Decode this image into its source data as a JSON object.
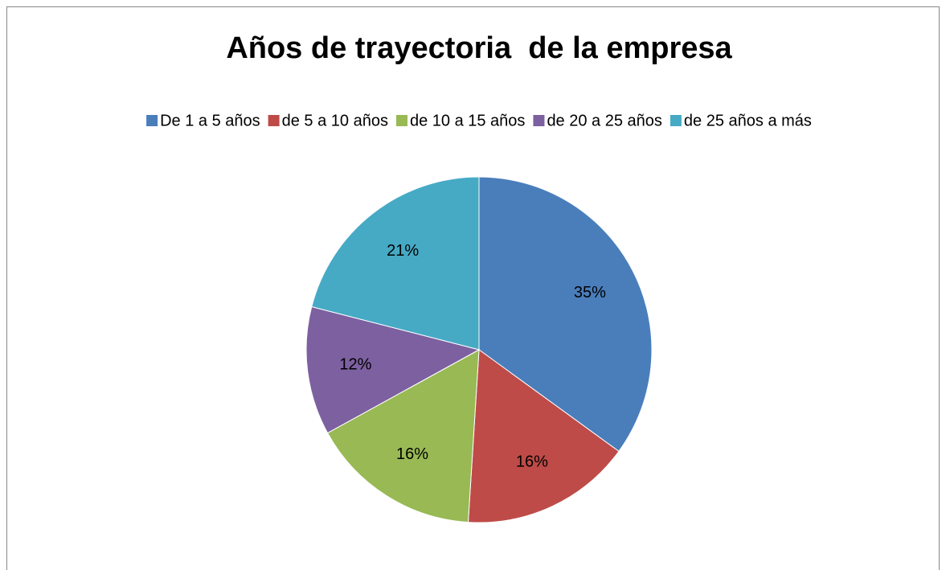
{
  "chart_data": {
    "type": "pie",
    "title": "Años de trayectoria  de la empresa",
    "categories": [
      "De 1 a 5 años",
      "de 5 a 10 años",
      "de 10 a 15 años",
      "de 20 a 25 años",
      "de 25 años a más"
    ],
    "values": [
      35,
      16,
      16,
      12,
      21
    ],
    "value_labels": [
      "35%",
      "16%",
      "16%",
      "12%",
      "21%"
    ],
    "colors": [
      "#4a7ebb",
      "#be4b48",
      "#98b954",
      "#7d60a0",
      "#46aac5"
    ],
    "legend": "top"
  }
}
